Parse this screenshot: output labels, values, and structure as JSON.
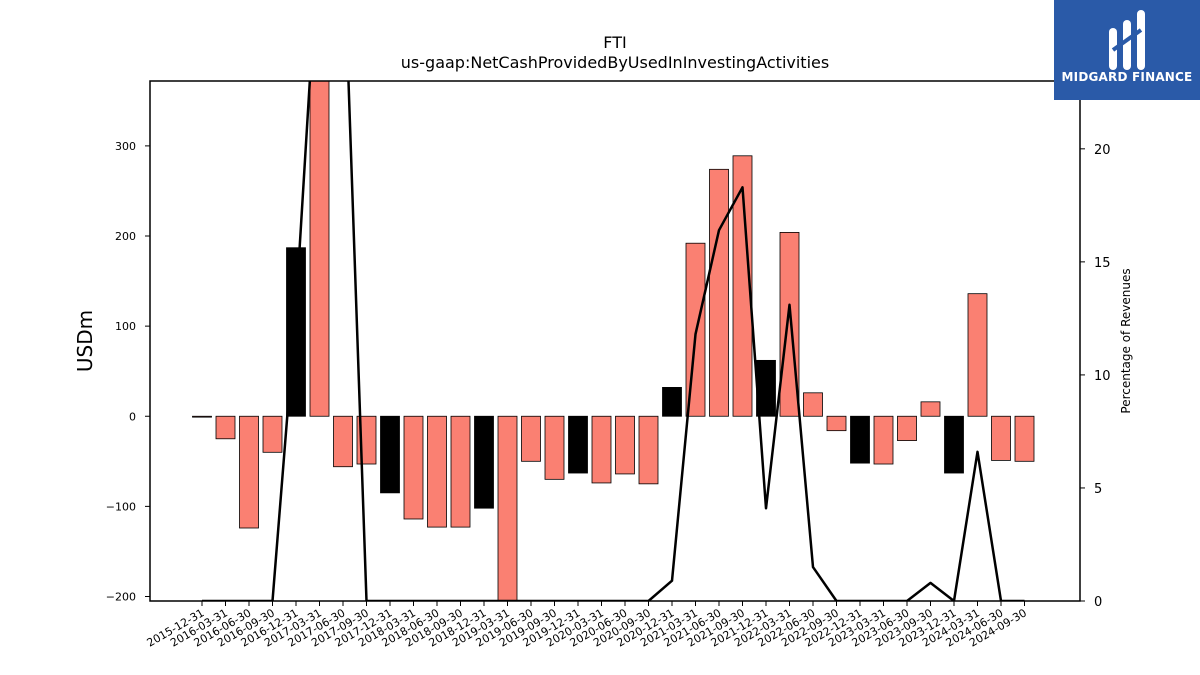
{
  "chart_data": {
    "type": "bar",
    "title": "FTI",
    "subtitle": "us-gaap:NetCashProvidedByUsedInInvestingActivities",
    "ylabel": "USDm",
    "y2label": "Percentage of Revenues",
    "ylim": [
      -205,
      372
    ],
    "y2lim": [
      0,
      23
    ],
    "yticks": [
      -200,
      -100,
      0,
      100,
      200,
      300
    ],
    "y2ticks": [
      0,
      5,
      10,
      15,
      20
    ],
    "categories": [
      "2015-12-31",
      "2016-03-31",
      "2016-06-30",
      "2016-09-30",
      "2016-12-31",
      "2017-03-31",
      "2017-06-30",
      "2017-09-30",
      "2017-12-31",
      "2018-03-31",
      "2018-06-30",
      "2018-09-30",
      "2018-12-31",
      "2019-03-31",
      "2019-06-30",
      "2019-09-30",
      "2019-12-31",
      "2020-03-31",
      "2020-06-30",
      "2020-09-30",
      "2020-12-31",
      "2021-03-31",
      "2021-06-30",
      "2021-09-30",
      "2021-12-31",
      "2022-03-31",
      "2022-06-30",
      "2022-09-30",
      "2022-12-31",
      "2023-03-31",
      "2023-06-30",
      "2023-09-30",
      "2023-12-31",
      "2024-03-31",
      "2024-06-30",
      "2024-09-30"
    ],
    "series": [
      {
        "kind": "bar",
        "values": [
          -1,
          -25,
          -124,
          -40,
          187,
          380,
          -56,
          -53,
          -85,
          -114,
          -123,
          -123,
          -102,
          -215,
          -50,
          -70,
          -63,
          -74,
          -64,
          -75,
          32,
          192,
          274,
          289,
          62,
          204,
          26,
          -16,
          -52,
          -53,
          -27,
          16,
          -63,
          136,
          -49,
          -50
        ],
        "highlight": [
          false,
          false,
          false,
          false,
          true,
          false,
          false,
          false,
          true,
          false,
          false,
          false,
          true,
          false,
          false,
          false,
          true,
          false,
          false,
          false,
          true,
          false,
          false,
          false,
          true,
          false,
          false,
          false,
          true,
          false,
          false,
          false,
          true,
          false,
          false,
          false
        ]
      },
      {
        "kind": "line",
        "axis": "right",
        "values": [
          0,
          0,
          0,
          0,
          13,
          30,
          30,
          0,
          0,
          0,
          0,
          0,
          0,
          0,
          0,
          0,
          0,
          0,
          0,
          0,
          0.9,
          11.8,
          16.4,
          18.3,
          4.1,
          13.1,
          1.5,
          0,
          0,
          0,
          0,
          0.8,
          0,
          6.6,
          0,
          0
        ]
      }
    ],
    "colors": {
      "bar": "#fa8072",
      "highlight": "#000000",
      "line": "#000000"
    },
    "grid": false
  },
  "logo": {
    "text": "MIDGARD FINANCE"
  }
}
